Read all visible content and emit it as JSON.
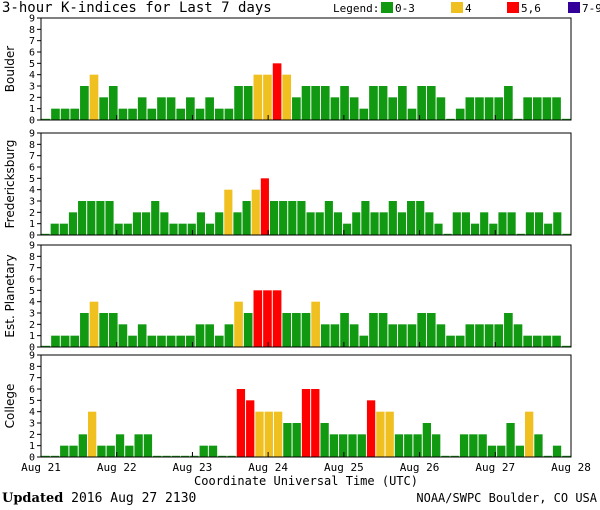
{
  "title": "3-hour K-indices for Last 7 days",
  "legend": {
    "label": "Legend:",
    "items": [
      {
        "label": "0-3",
        "color": "#119911"
      },
      {
        "label": "4",
        "color": "#f0c020"
      },
      {
        "label": "5,6",
        "color": "#ff0000"
      },
      {
        "label": "7-9",
        "color": "#330099"
      }
    ]
  },
  "footer": {
    "updated_label": "Updated",
    "updated_value": "2016 Aug 27 2130",
    "source": "NOAA/SWPC Boulder, CO USA"
  },
  "chart_data": {
    "type": "bar",
    "xlabel": "Coordinate Universal Time (UTC)",
    "x_tick_labels": [
      "Aug 21",
      "Aug 22",
      "Aug 23",
      "Aug 24",
      "Aug 25",
      "Aug 26",
      "Aug 27",
      "Aug 28"
    ],
    "ylim": [
      0,
      9
    ],
    "y_ticks": [
      0,
      1,
      2,
      3,
      4,
      5,
      6,
      7,
      8,
      9
    ],
    "colors": {
      "low": "#119911",
      "k4": "#f0c020",
      "k56": "#ff0000",
      "k79": "#330099"
    },
    "panels": [
      {
        "name": "Boulder",
        "values": [
          0,
          1,
          1,
          1,
          3,
          4,
          2,
          3,
          1,
          1,
          2,
          1,
          2,
          2,
          1,
          2,
          1,
          2,
          1,
          1,
          3,
          3,
          4,
          4,
          5,
          4,
          2,
          3,
          3,
          3,
          2,
          3,
          2,
          1,
          3,
          3,
          2,
          3,
          1,
          3,
          3,
          2,
          0,
          1,
          2,
          2,
          2,
          2,
          3,
          0,
          2,
          2,
          2,
          2,
          0
        ]
      },
      {
        "name": "Fredericksburg",
        "values": [
          0,
          1,
          1,
          2,
          3,
          3,
          3,
          3,
          1,
          1,
          2,
          2,
          3,
          2,
          1,
          1,
          1,
          2,
          1,
          2,
          4,
          2,
          3,
          4,
          5,
          3,
          3,
          3,
          3,
          2,
          2,
          3,
          2,
          1,
          2,
          3,
          2,
          2,
          3,
          2,
          3,
          3,
          2,
          1,
          0,
          2,
          2,
          1,
          2,
          1,
          2,
          2,
          0,
          2,
          2,
          1,
          2,
          0
        ]
      },
      {
        "name": "Est. Planetary",
        "values": [
          0,
          1,
          1,
          1,
          3,
          4,
          3,
          3,
          2,
          1,
          2,
          1,
          1,
          1,
          1,
          1,
          2,
          2,
          1,
          2,
          4,
          3,
          5,
          5,
          5,
          3,
          3,
          3,
          4,
          2,
          2,
          3,
          2,
          1,
          3,
          3,
          2,
          2,
          2,
          3,
          3,
          2,
          1,
          1,
          2,
          2,
          2,
          2,
          3,
          2,
          1,
          1,
          1,
          1,
          0
        ]
      },
      {
        "name": "College",
        "values": [
          0,
          0,
          1,
          1,
          2,
          4,
          1,
          1,
          2,
          1,
          2,
          2,
          0,
          0,
          0,
          0,
          0,
          1,
          1,
          0,
          0,
          6,
          5,
          4,
          4,
          4,
          3,
          3,
          6,
          6,
          3,
          2,
          2,
          2,
          2,
          5,
          4,
          4,
          2,
          2,
          2,
          3,
          2,
          0,
          0,
          2,
          2,
          2,
          1,
          1,
          3,
          1,
          4,
          2,
          0,
          1,
          0
        ]
      }
    ]
  }
}
